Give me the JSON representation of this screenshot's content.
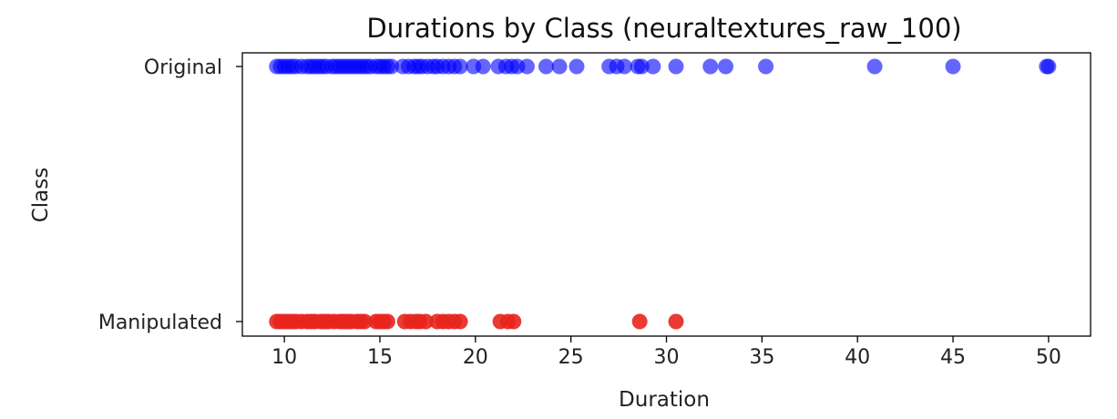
{
  "chart_data": {
    "type": "scatter",
    "title": "Durations by Class (neuraltextures_raw_100)",
    "xlabel": "Duration",
    "ylabel": "Class",
    "xlim": [
      7.8,
      52.2
    ],
    "xticks": [
      10,
      15,
      20,
      25,
      30,
      35,
      40,
      45,
      50
    ],
    "categories": [
      "Manipulated",
      "Original"
    ],
    "grid": false,
    "series": [
      {
        "category": "Original",
        "color": "#0000ff",
        "alpha": 0.6,
        "x": [
          9.6,
          9.8,
          10.0,
          10.2,
          10.4,
          10.6,
          10.9,
          11.2,
          11.4,
          11.6,
          11.8,
          12.0,
          12.2,
          12.5,
          12.7,
          12.9,
          13.1,
          13.3,
          13.5,
          13.7,
          13.9,
          14.1,
          14.3,
          14.5,
          14.8,
          15.0,
          15.2,
          15.4,
          15.6,
          16.2,
          16.5,
          16.8,
          17.0,
          17.2,
          17.5,
          17.8,
          18.0,
          18.3,
          18.6,
          18.9,
          19.2,
          19.9,
          20.4,
          21.2,
          21.6,
          21.9,
          22.2,
          22.7,
          23.7,
          24.4,
          25.3,
          27.0,
          27.4,
          27.8,
          28.5,
          28.7,
          29.3,
          30.5,
          32.3,
          33.1,
          35.2,
          40.9,
          45.0,
          49.9,
          50.0
        ]
      },
      {
        "category": "Manipulated",
        "color": "#e8251e",
        "alpha": 0.9,
        "x": [
          9.6,
          9.8,
          10.0,
          10.2,
          10.4,
          10.6,
          10.9,
          11.2,
          11.4,
          11.6,
          11.9,
          12.1,
          12.3,
          12.6,
          12.9,
          13.1,
          13.3,
          13.5,
          13.8,
          14.0,
          14.2,
          14.8,
          15.0,
          15.2,
          15.4,
          16.3,
          16.6,
          16.9,
          17.1,
          17.4,
          18.0,
          18.3,
          18.6,
          18.9,
          19.2,
          21.3,
          21.7,
          22.0,
          28.6,
          30.5
        ]
      }
    ]
  }
}
